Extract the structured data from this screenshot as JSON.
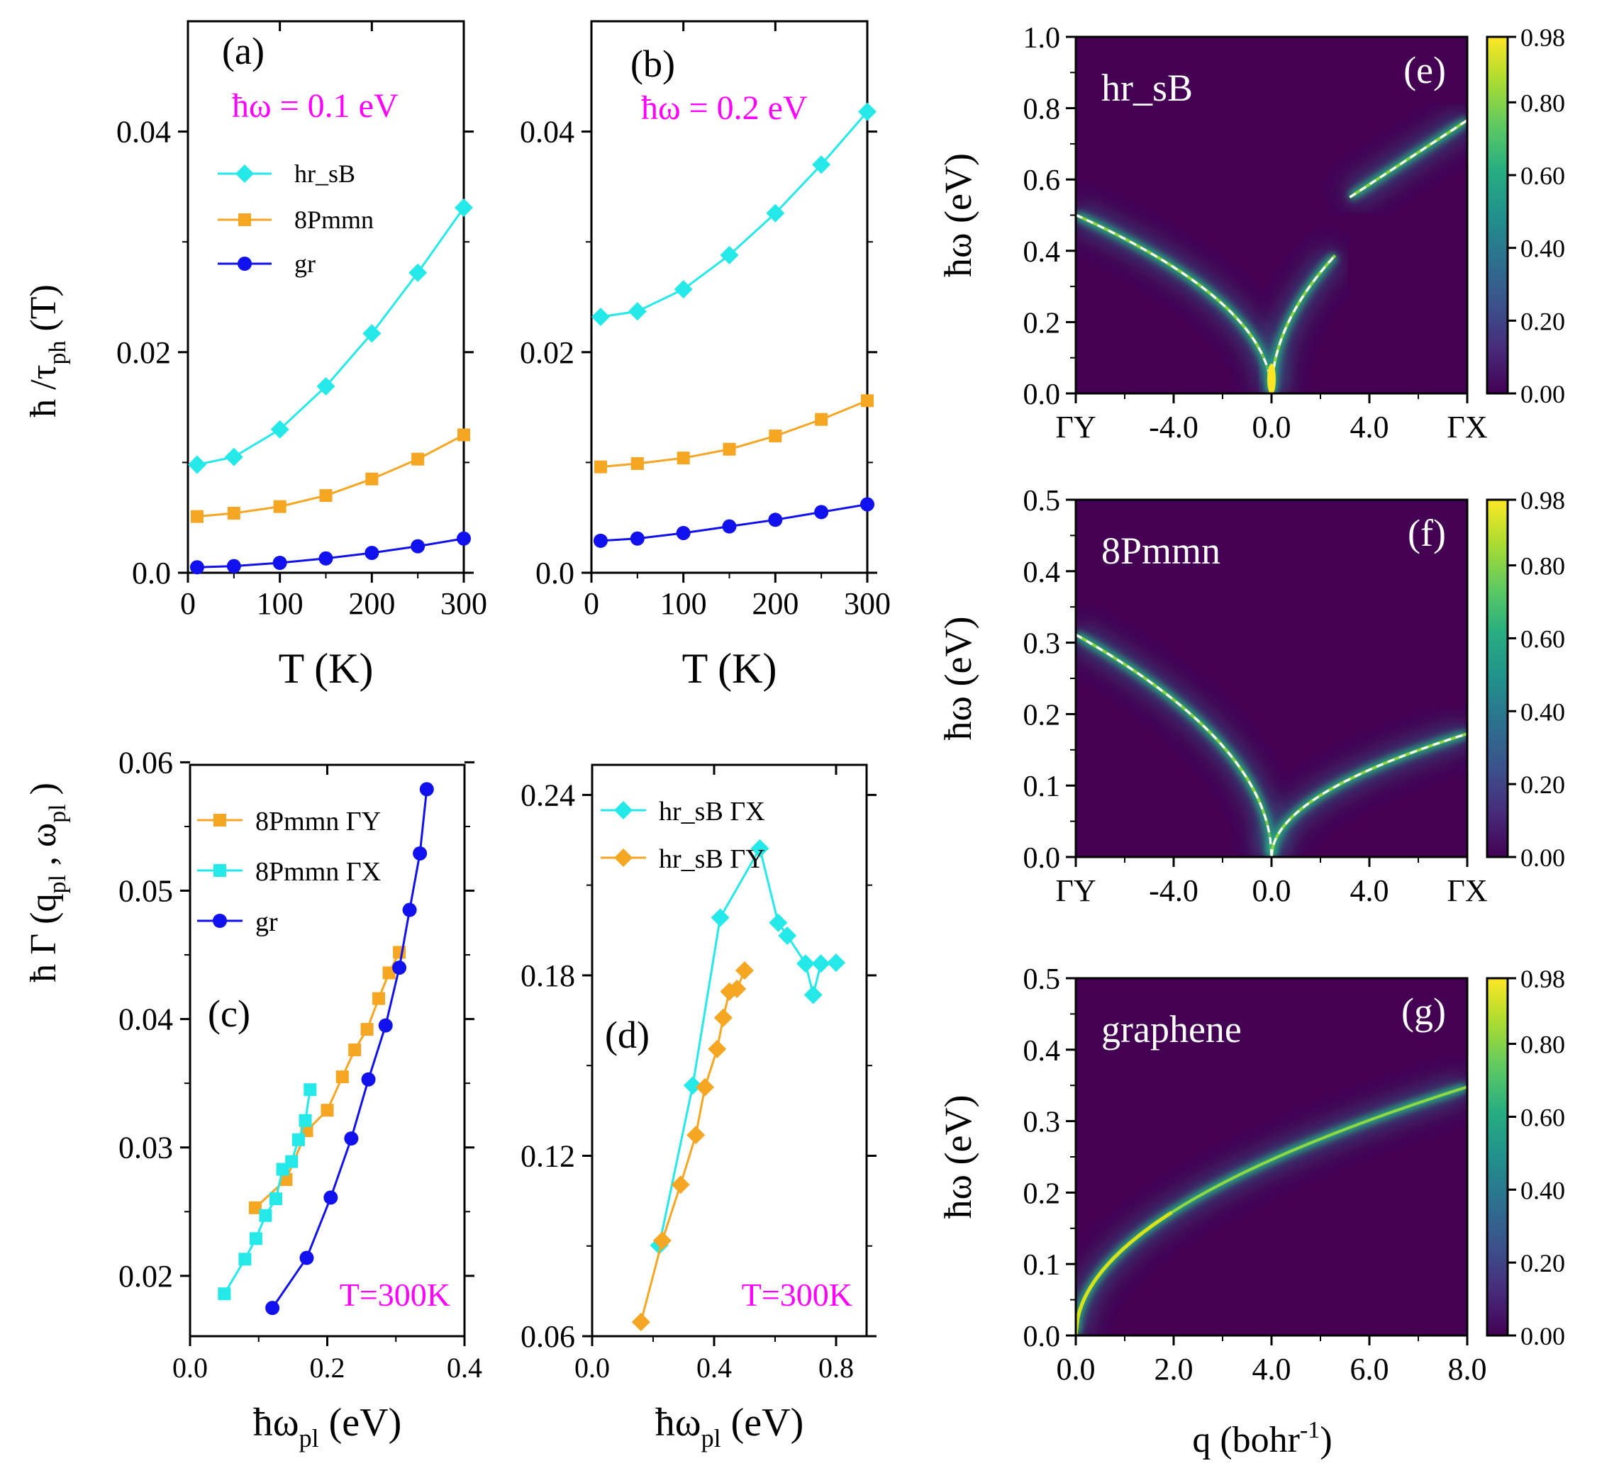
{
  "figure": {
    "shared_labels": {
      "ylabel_top": "ħ /τph (T)",
      "ylabel_top_main": "ħ /τ",
      "ylabel_top_sub": "ph",
      "ylabel_top_tail": " (T)",
      "ylabel_bottom_main": "ħ Γ (q",
      "ylabel_bottom_sub1": "pl",
      "ylabel_bottom_mid": " , ω",
      "ylabel_bottom_sub2": "pl",
      "ylabel_bottom_tail": " )"
    }
  },
  "chart_data": [
    {
      "id": "a",
      "type": "line",
      "panel_label": "(a)",
      "annotation": "ħω = 0.1 eV",
      "xlabel": "T (K)",
      "ylabel": "ħ /τph (T)",
      "xlim": [
        0,
        300
      ],
      "ylim": [
        0,
        0.05
      ],
      "xticks": [
        0,
        100,
        200,
        300
      ],
      "xtick_labels": [
        "0",
        "100",
        "200",
        "300"
      ],
      "yticks": [
        0,
        0.02,
        0.04
      ],
      "ytick_labels": [
        "0.0",
        "0.02",
        "0.04"
      ],
      "legend": [
        "hr_sB",
        "8Pmmn",
        "gr"
      ],
      "series": [
        {
          "name": "hr_sB",
          "color": "#25e8e8",
          "marker": "diamond",
          "x": [
            10,
            50,
            100,
            150,
            200,
            250,
            300
          ],
          "y": [
            0.0098,
            0.0105,
            0.013,
            0.0169,
            0.0217,
            0.0272,
            0.0331
          ]
        },
        {
          "name": "8Pmmn",
          "color": "#f5a623",
          "marker": "square",
          "x": [
            10,
            50,
            100,
            150,
            200,
            250,
            300
          ],
          "y": [
            0.0051,
            0.0054,
            0.006,
            0.007,
            0.0085,
            0.0103,
            0.0125
          ]
        },
        {
          "name": "gr",
          "color": "#1111ee",
          "marker": "circle",
          "x": [
            10,
            50,
            100,
            150,
            200,
            250,
            300
          ],
          "y": [
            0.0005,
            0.0006,
            0.0009,
            0.0013,
            0.0018,
            0.0024,
            0.0031
          ]
        }
      ]
    },
    {
      "id": "b",
      "type": "line",
      "panel_label": "(b)",
      "annotation": "ħω = 0.2 eV",
      "xlabel": "T (K)",
      "ylabel": "",
      "xlim": [
        0,
        300
      ],
      "ylim": [
        0,
        0.05
      ],
      "xticks": [
        0,
        100,
        200,
        300
      ],
      "xtick_labels": [
        "0",
        "100",
        "200",
        "300"
      ],
      "yticks": [
        0,
        0.02,
        0.04
      ],
      "ytick_labels": [
        "0.0",
        "0.02",
        "0.04"
      ],
      "series": [
        {
          "name": "hr_sB",
          "color": "#25e8e8",
          "marker": "diamond",
          "x": [
            10,
            50,
            100,
            150,
            200,
            250,
            300
          ],
          "y": [
            0.0232,
            0.0237,
            0.0257,
            0.0288,
            0.0326,
            0.037,
            0.0418
          ]
        },
        {
          "name": "8Pmmn",
          "color": "#f5a623",
          "marker": "square",
          "x": [
            10,
            50,
            100,
            150,
            200,
            250,
            300
          ],
          "y": [
            0.0096,
            0.0099,
            0.0104,
            0.0112,
            0.0124,
            0.0139,
            0.0156
          ]
        },
        {
          "name": "gr",
          "color": "#1111ee",
          "marker": "circle",
          "x": [
            10,
            50,
            100,
            150,
            200,
            250,
            300
          ],
          "y": [
            0.0029,
            0.0031,
            0.0036,
            0.0042,
            0.0048,
            0.0055,
            0.0062
          ]
        }
      ]
    },
    {
      "id": "c",
      "type": "line",
      "panel_label": "(c)",
      "annotation": "T=300K",
      "xlabel": "ħωpl (eV)",
      "ylabel": "ħ Γ (qpl , ωpl )",
      "xlim": [
        0,
        0.4
      ],
      "ylim": [
        0.0153,
        0.0598
      ],
      "xticks": [
        0,
        0.2,
        0.4
      ],
      "xtick_labels": [
        "0.0",
        "0.2",
        "0.4"
      ],
      "yticks": [
        0.02,
        0.03,
        0.04,
        0.05,
        0.06
      ],
      "ytick_labels": [
        "0.02",
        "0.03",
        "0.04",
        "0.05",
        "0.06"
      ],
      "legend": [
        "8Pmmn ΓY",
        "8Pmmn ΓX",
        "gr"
      ],
      "series": [
        {
          "name": "8Pmmn ΓY",
          "color": "#f5a623",
          "marker": "square",
          "x": [
            0.095,
            0.14,
            0.17,
            0.2,
            0.222,
            0.24,
            0.258,
            0.275,
            0.29,
            0.305
          ],
          "y": [
            0.0253,
            0.0275,
            0.0313,
            0.0329,
            0.0355,
            0.0376,
            0.0392,
            0.0416,
            0.0436,
            0.0452
          ]
        },
        {
          "name": "8Pmmn ΓX",
          "color": "#25e8e8",
          "marker": "square",
          "x": [
            0.05,
            0.08,
            0.096,
            0.11,
            0.125,
            0.135,
            0.148,
            0.158,
            0.168,
            0.175
          ],
          "y": [
            0.0186,
            0.0213,
            0.0229,
            0.0247,
            0.026,
            0.0283,
            0.0289,
            0.0306,
            0.0321,
            0.0345
          ]
        },
        {
          "name": "gr",
          "color": "#1111ee",
          "marker": "circle",
          "x": [
            0.12,
            0.17,
            0.205,
            0.235,
            0.26,
            0.285,
            0.305,
            0.32,
            0.335,
            0.345
          ],
          "y": [
            0.0175,
            0.0214,
            0.0261,
            0.0307,
            0.0353,
            0.0395,
            0.044,
            0.0485,
            0.0529,
            0.0579
          ]
        }
      ]
    },
    {
      "id": "d",
      "type": "line",
      "panel_label": "(d)",
      "annotation": "T=300K",
      "xlabel": "ħωpl (eV)",
      "ylabel": "",
      "xlim": [
        0,
        0.9
      ],
      "ylim": [
        0.06,
        0.25
      ],
      "xticks": [
        0,
        0.4,
        0.8
      ],
      "xtick_labels": [
        "0.0",
        "0.4",
        "0.8"
      ],
      "yticks": [
        0.06,
        0.12,
        0.18,
        0.24
      ],
      "ytick_labels": [
        "0.06",
        "0.12",
        "0.18",
        "0.24"
      ],
      "legend": [
        "hr_sB ΓX",
        "hr_sB ΓY"
      ],
      "series": [
        {
          "name": "hr_sB ΓX",
          "color": "#25e8e8",
          "marker": "diamond",
          "x": [
            0.22,
            0.33,
            0.42,
            0.55,
            0.61,
            0.64,
            0.7,
            0.725,
            0.75,
            0.8
          ],
          "y": [
            0.0902,
            0.1434,
            0.1992,
            0.2222,
            0.1975,
            0.1932,
            0.1839,
            0.1735,
            0.1839,
            0.1842
          ]
        },
        {
          "name": "hr_sB ΓY",
          "color": "#f5a623",
          "marker": "diamond",
          "x": [
            0.16,
            0.23,
            0.29,
            0.34,
            0.37,
            0.41,
            0.43,
            0.45,
            0.475,
            0.5
          ],
          "y": [
            0.0647,
            0.0918,
            0.1104,
            0.1269,
            0.1428,
            0.1555,
            0.1659,
            0.1746,
            0.1755,
            0.1816
          ]
        }
      ]
    },
    {
      "id": "e",
      "type": "heatmap",
      "panel_label": "(e)",
      "material_label": "hr_sB",
      "xlabel": "",
      "ylabel": "ħω (eV)",
      "xlim": [
        -8,
        8
      ],
      "ylim": [
        0,
        1.0
      ],
      "xticks": [
        -8,
        -4,
        0,
        4,
        8
      ],
      "xtick_labels": [
        "ΓY",
        "-4.0",
        "0.0",
        "4.0",
        "ΓX"
      ],
      "yticks": [
        0,
        0.2,
        0.4,
        0.6,
        0.8,
        1.0
      ],
      "ytick_labels": [
        "0.0",
        "0.2",
        "0.4",
        "0.6",
        "0.8",
        "1.0"
      ],
      "colorbar": {
        "range": [
          0,
          0.98
        ],
        "ticks": [
          0,
          0.2,
          0.4,
          0.6,
          0.8,
          0.98
        ],
        "tick_labels": [
          "0.00",
          "0.20",
          "0.40",
          "0.60",
          "0.80",
          "0.98"
        ]
      },
      "dispersion": {
        "left_coef": 0.177,
        "right_coef": 0.24,
        "right_max": 0.78,
        "gap": [
          2.6,
          3.0
        ]
      }
    },
    {
      "id": "f",
      "type": "heatmap",
      "panel_label": "(f)",
      "material_label": "8Pmmn",
      "xlabel": "",
      "ylabel": "ħω (eV)",
      "xlim": [
        -8,
        8
      ],
      "ylim": [
        0,
        0.5
      ],
      "xticks": [
        -8,
        -4,
        0,
        4,
        8
      ],
      "xtick_labels": [
        "ΓY",
        "-4.0",
        "0.0",
        "4.0",
        "ΓX"
      ],
      "yticks": [
        0,
        0.1,
        0.2,
        0.3,
        0.4,
        0.5
      ],
      "ytick_labels": [
        "0.0",
        "0.1",
        "0.2",
        "0.3",
        "0.4",
        "0.5"
      ],
      "colorbar": {
        "range": [
          0,
          0.98
        ],
        "ticks": [
          0,
          0.2,
          0.4,
          0.6,
          0.8,
          0.98
        ],
        "tick_labels": [
          "0.00",
          "0.20",
          "0.40",
          "0.60",
          "0.80",
          "0.98"
        ]
      },
      "dispersion": {
        "left_coef": 0.11,
        "right_coef": 0.061
      }
    },
    {
      "id": "g",
      "type": "heatmap",
      "panel_label": "(g)",
      "material_label": "graphene",
      "xlabel": "q (bohr-1)",
      "xlabel_main": "q (bohr",
      "xlabel_sup": "-1",
      "xlabel_tail": ")",
      "ylabel": "ħω (eV)",
      "xlim": [
        0,
        8
      ],
      "ylim": [
        0,
        0.5
      ],
      "xticks": [
        0,
        2,
        4,
        6,
        8
      ],
      "xtick_labels": [
        "0.0",
        "2.0",
        "4.0",
        "6.0",
        "8.0"
      ],
      "yticks": [
        0,
        0.1,
        0.2,
        0.3,
        0.4,
        0.5
      ],
      "ytick_labels": [
        "0.0",
        "0.1",
        "0.2",
        "0.3",
        "0.4",
        "0.5"
      ],
      "colorbar": {
        "range": [
          0,
          0.98
        ],
        "ticks": [
          0,
          0.2,
          0.4,
          0.6,
          0.8,
          0.98
        ],
        "tick_labels": [
          "0.00",
          "0.20",
          "0.40",
          "0.60",
          "0.80",
          "0.98"
        ]
      },
      "dispersion": {
        "coef": 0.123
      }
    }
  ]
}
